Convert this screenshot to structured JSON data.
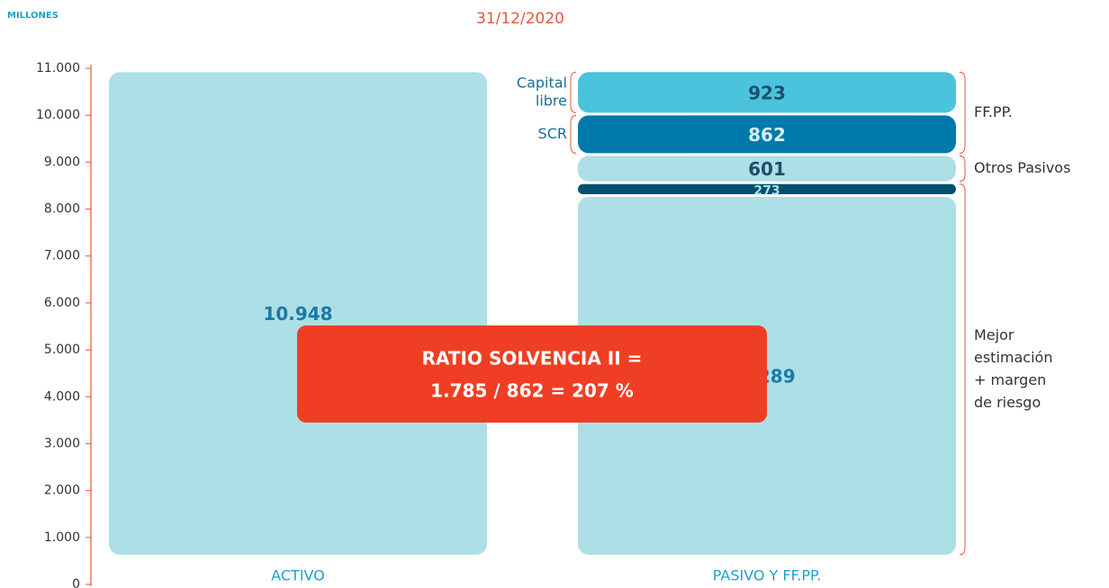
{
  "chart_data": {
    "type": "stacked-bar",
    "title": "31/12/2020",
    "unit_label": "MILLONES",
    "ylim": [
      0,
      11000
    ],
    "yticks": [
      0,
      {
        "value": 1000,
        "label": "1.000"
      },
      {
        "value": 2000,
        "label": "2.000"
      },
      {
        "value": 3000,
        "label": "3.000"
      },
      {
        "value": 4000,
        "label": "4.000"
      },
      {
        "value": 5000,
        "label": "5.000"
      },
      {
        "value": 6000,
        "label": "6.000"
      },
      {
        "value": 7000,
        "label": "7.000"
      },
      {
        "value": 8000,
        "label": "8.000"
      },
      {
        "value": 9000,
        "label": "9.000"
      },
      {
        "value": 10000,
        "label": "10.000"
      },
      {
        "value": 11000,
        "label": "11.000"
      }
    ],
    "bars": [
      {
        "category": "ACTIVO",
        "segments": [
          {
            "value": 10948,
            "value_label": "10.948",
            "color": "#acdfe6",
            "label_color": "#1a7aa8"
          }
        ]
      },
      {
        "category": "PASIVO Y FF.PP.",
        "segments": [
          {
            "value": 8289,
            "value_label": "8.289",
            "color": "#acdfe6",
            "label_color": "#1a7aa8"
          },
          {
            "value": 273,
            "color": "#00506e",
            "label_color": "#acdfe6"
          },
          {
            "value": 601,
            "color": "#acdfe6",
            "label_color": "#1d4f6e"
          },
          {
            "value": 862,
            "color": "#007aaa",
            "label_color": "#d2f0f6",
            "left_label": [
              "SCR"
            ]
          },
          {
            "value": 923,
            "color": "#4bc3dc",
            "label_color": "#1d4f6e",
            "left_label": [
              "Capital",
              "libre"
            ]
          }
        ]
      }
    ],
    "brackets": [
      {
        "label": [
          "Mejor",
          "estimación",
          "+ margen",
          "de riesgo"
        ]
      },
      {
        "label": [
          "Otros Pasivos"
        ]
      },
      {
        "label": [
          "FF.PP."
        ]
      }
    ],
    "callout": [
      "RATIO SOLVENCIA II =",
      "1.785 / 862 = 207 %"
    ]
  }
}
